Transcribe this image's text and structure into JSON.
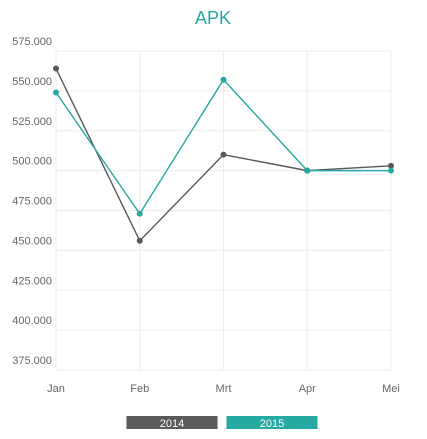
{
  "chart_data": {
    "type": "line",
    "title": "APK",
    "xlabel": "",
    "ylabel": "",
    "categories": [
      "Jan",
      "Feb",
      "Mrt",
      "Apr",
      "Mei"
    ],
    "ylim": [
      375000,
      575000
    ],
    "yticks": [
      375000,
      400000,
      425000,
      450000,
      475000,
      500000,
      525000,
      550000,
      575000
    ],
    "ytick_labels": [
      "375.000",
      "400.000",
      "425.000",
      "450.000",
      "475.000",
      "500.000",
      "525.000",
      "550.000",
      "575.000"
    ],
    "grid": true,
    "legend_position": "bottom",
    "series": [
      {
        "name": "2014",
        "color": "#595959",
        "values": [
          564000,
          456000,
          510000,
          500000,
          503000
        ]
      },
      {
        "name": "2015",
        "color": "#26a9a3",
        "values": [
          549000,
          473000,
          557000,
          500000,
          500000
        ]
      }
    ]
  }
}
